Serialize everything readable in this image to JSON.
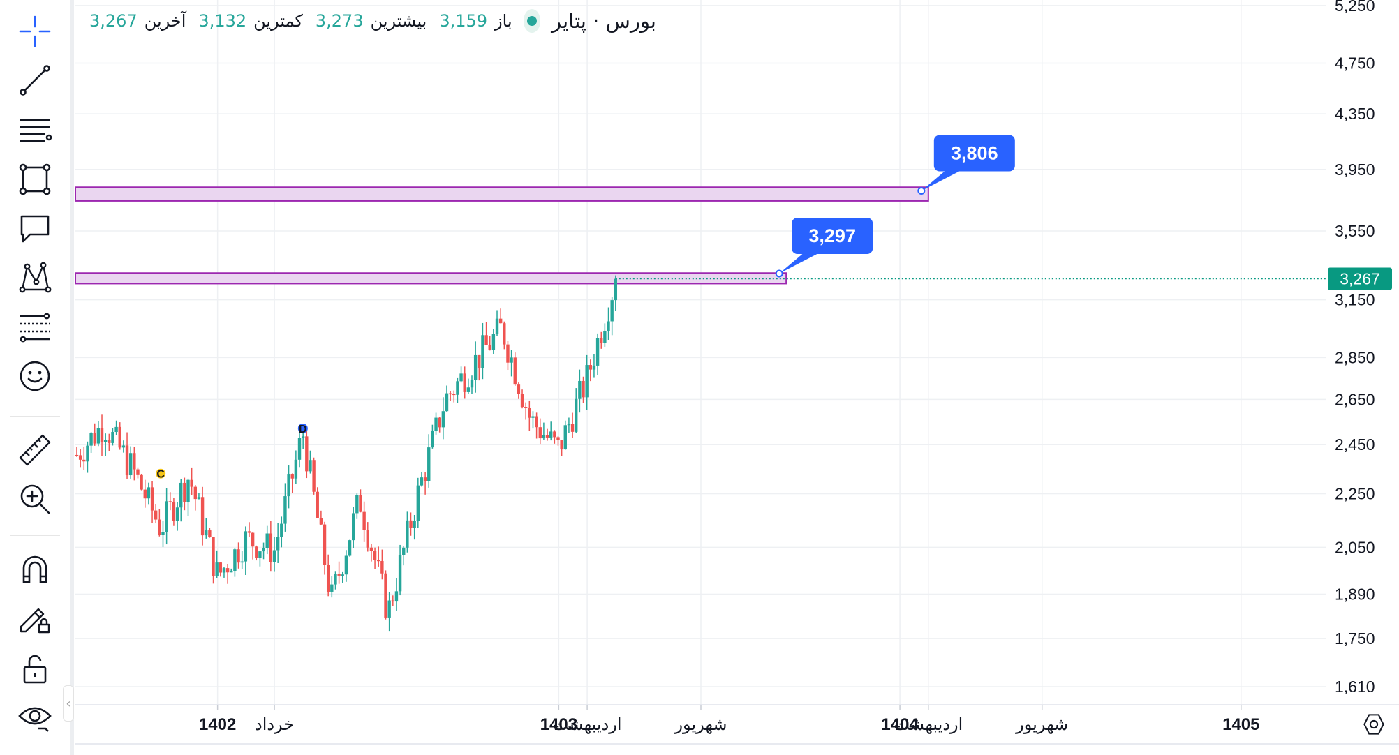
{
  "legend": {
    "symbol": "بورس · پتایر",
    "open_label": "باز",
    "open_value": "3,159",
    "high_label": "بیشترین",
    "high_value": "3,273",
    "low_label": "کمترین",
    "low_value": "3,132",
    "close_label": "آخرین",
    "close_value": "3,267",
    "market_status": "open"
  },
  "toolbar": {
    "tools": [
      {
        "name": "crosshair-tool",
        "icon": "crosshair-icon"
      },
      {
        "name": "trend-line-tool",
        "icon": "trend-line-icon"
      },
      {
        "name": "horizontal-lines-tool",
        "icon": "horizontal-lines-icon"
      },
      {
        "name": "rectangle-tool",
        "icon": "rectangle-icon"
      },
      {
        "name": "callout-tool",
        "icon": "callout-icon"
      },
      {
        "name": "pattern-tool",
        "icon": "pattern-icon"
      },
      {
        "name": "fibonacci-tool",
        "icon": "fibonacci-icon"
      },
      {
        "name": "emoji-tool",
        "icon": "smiley-icon"
      },
      {
        "name": "measure-tool",
        "icon": "ruler-icon"
      },
      {
        "name": "zoom-in-tool",
        "icon": "zoom-in-icon"
      },
      {
        "name": "magnet-tool",
        "icon": "magnet-icon"
      },
      {
        "name": "lock-drawing-tool",
        "icon": "pencil-lock-icon"
      },
      {
        "name": "lock-all-tool",
        "icon": "unlock-icon"
      },
      {
        "name": "visibility-tool",
        "icon": "eye-icon"
      }
    ]
  },
  "colors": {
    "up": "#26a69a",
    "down": "#ef5350",
    "zone_fill": "#ead6f0",
    "zone_border": "#9c27b0",
    "callout": "#2962ff",
    "last_price": "#089981",
    "grid": "#eef0f3"
  },
  "chart_data": {
    "type": "candlestick",
    "y_axis": {
      "ticks": [
        1610,
        1750,
        1890,
        2050,
        2250,
        2450,
        2650,
        2850,
        3150,
        3550,
        3950,
        4350,
        4750,
        5250
      ],
      "labels": [
        "1,610",
        "1,750",
        "1,890",
        "2,050",
        "2,250",
        "2,450",
        "2,650",
        "2,850",
        "3,150",
        "3,550",
        "3,950",
        "4,350",
        "4,750",
        "5,250"
      ],
      "scale": "log",
      "range": [
        1560,
        5300
      ]
    },
    "x_axis": {
      "ticks": [
        {
          "label": "1402",
          "date": "1402-01",
          "bold": true
        },
        {
          "label": "خرداد",
          "date": "1402-03",
          "bold": false
        },
        {
          "label": "1403",
          "date": "1403-01",
          "bold": true
        },
        {
          "label": "اردیبهشت",
          "date": "1403-02",
          "bold": false
        },
        {
          "label": "شهریور",
          "date": "1403-06",
          "bold": false
        },
        {
          "label": "1404",
          "date": "1404-01",
          "bold": true
        },
        {
          "label": "اردیبهشت",
          "date": "1404-02",
          "bold": false
        },
        {
          "label": "شهریور",
          "date": "1404-06",
          "bold": false
        },
        {
          "label": "1405",
          "date": "1405-01",
          "bold": true
        }
      ]
    },
    "last_price": {
      "value": 3267,
      "label": "3,267"
    },
    "zones": [
      {
        "low": 3740,
        "high": 3830,
        "end": "1404-02",
        "label": "3,806",
        "label_anchor": 3806
      },
      {
        "low": 3240,
        "high": 3300,
        "end": "1403-09",
        "label": "3,297",
        "label_anchor": 3297
      }
    ],
    "markers": [
      {
        "label": "C",
        "date": "1401-11",
        "value": 2330,
        "color": "#f5c518"
      },
      {
        "label": "D",
        "date": "1402-04",
        "value": 2520,
        "color": "#2962ff"
      }
    ],
    "price_path": [
      {
        "date": "1401-08",
        "close": 2400
      },
      {
        "date": "1401-09",
        "close": 2540
      },
      {
        "date": "1401-10",
        "close": 2350
      },
      {
        "date": "1401-11",
        "close": 2120
      },
      {
        "date": "1401-12",
        "close": 2320
      },
      {
        "date": "1402-01",
        "close": 1950
      },
      {
        "date": "1402-02",
        "close": 2080
      },
      {
        "date": "1402-03",
        "close": 2040
      },
      {
        "date": "1402-04",
        "close": 2500
      },
      {
        "date": "1402-05",
        "close": 1870
      },
      {
        "date": "1402-06",
        "close": 2230
      },
      {
        "date": "1402-07",
        "close": 1830
      },
      {
        "date": "1402-08",
        "close": 2230
      },
      {
        "date": "1402-09",
        "close": 2650
      },
      {
        "date": "1402-10",
        "close": 2820
      },
      {
        "date": "1402-11",
        "close": 3000
      },
      {
        "date": "1402-12",
        "close": 2560
      },
      {
        "date": "1403-01",
        "close": 2430
      },
      {
        "date": "1403-02",
        "close": 2750
      },
      {
        "date": "1403-03",
        "close": 3267
      }
    ]
  }
}
